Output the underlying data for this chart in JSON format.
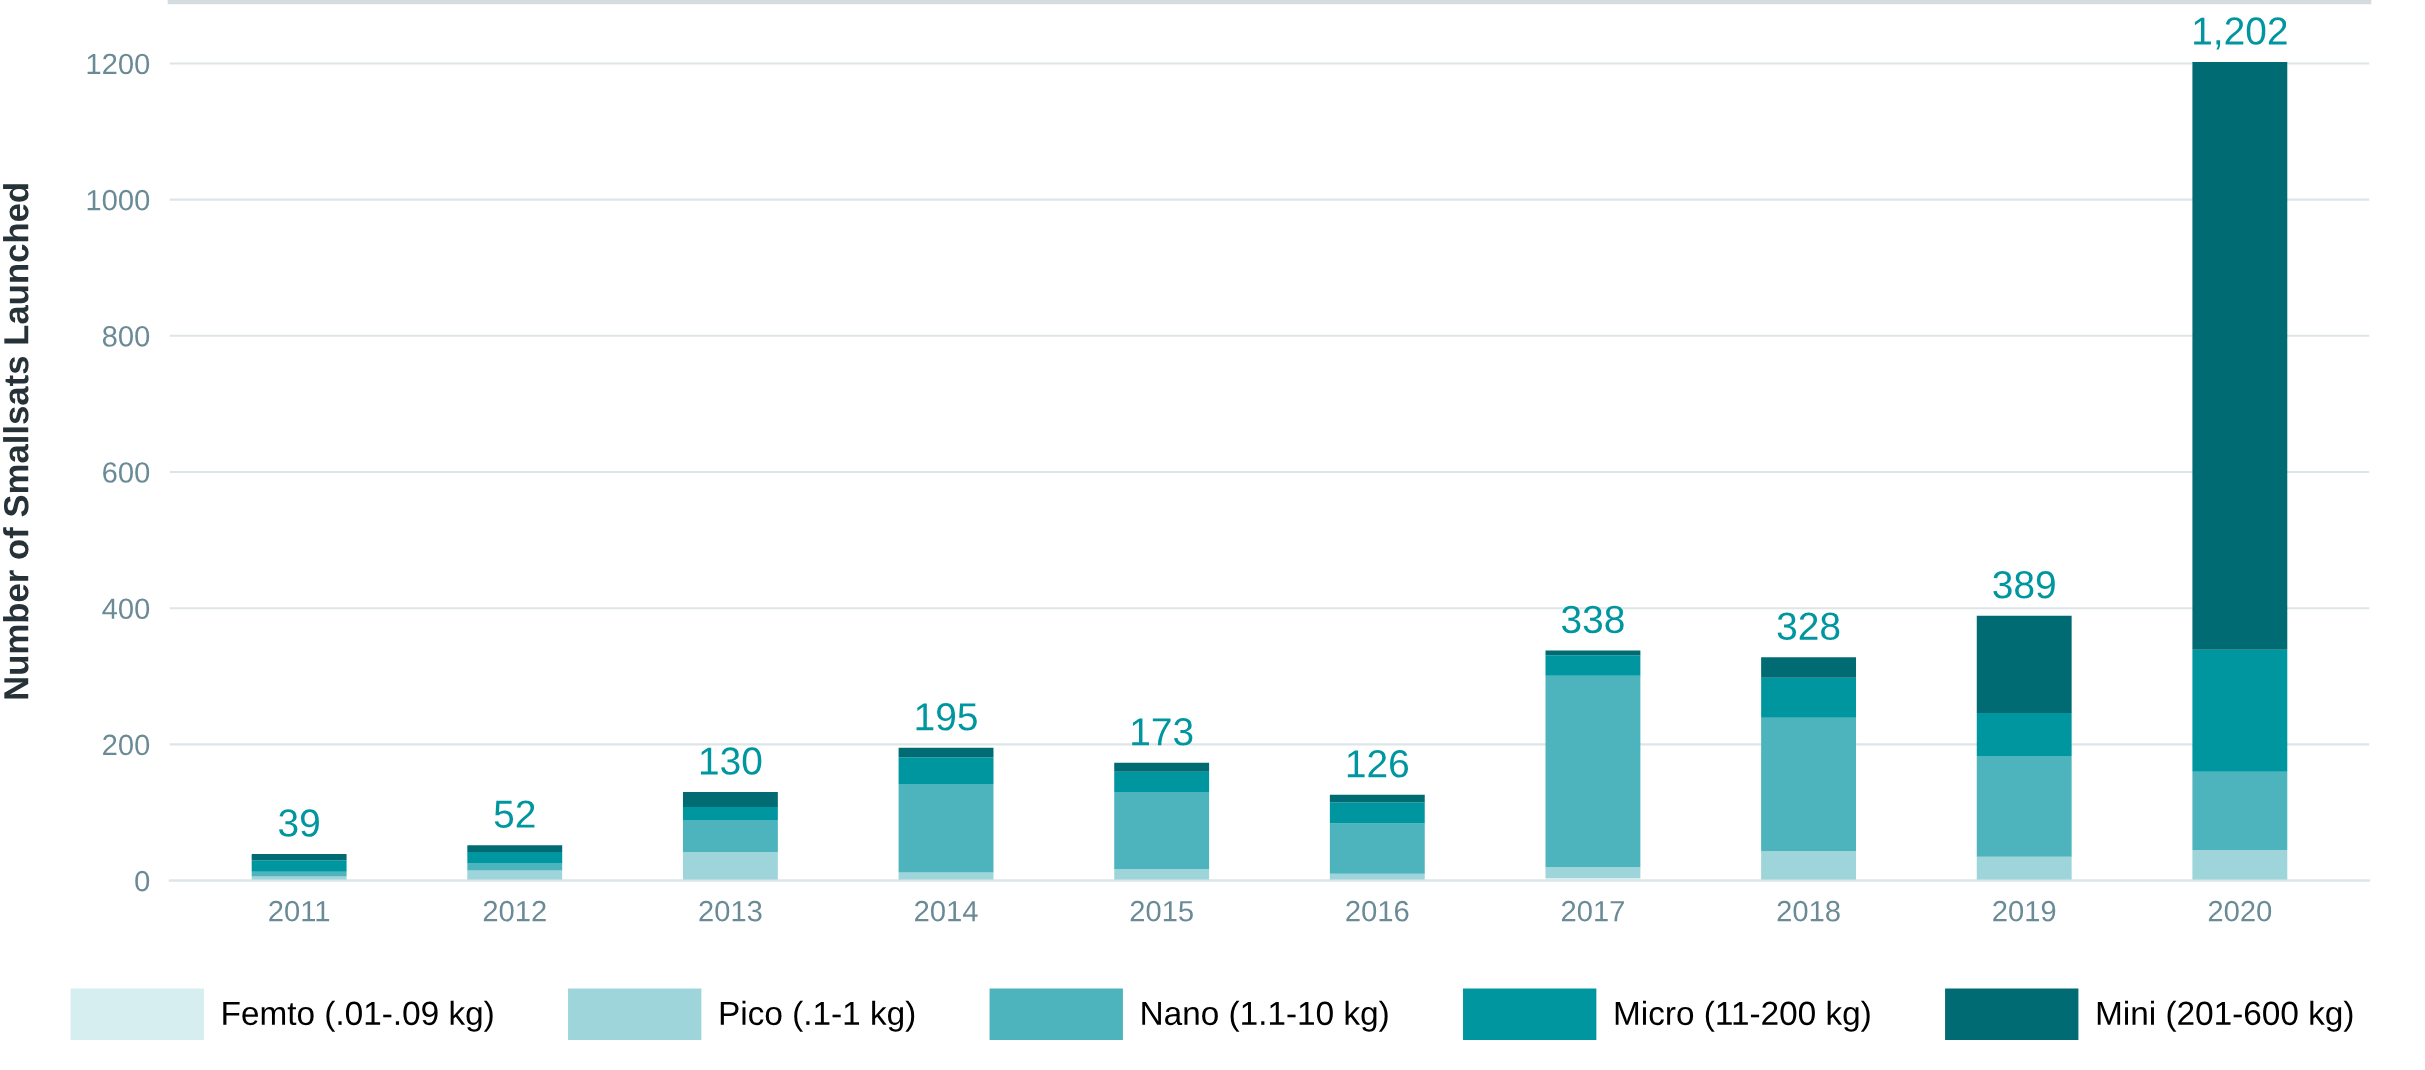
{
  "chart_data": {
    "type": "bar",
    "stacked": true,
    "ylabel": "Number of Smallsats Launched",
    "categories": [
      "2011",
      "2012",
      "2013",
      "2014",
      "2015",
      "2016",
      "2017",
      "2018",
      "2019",
      "2020"
    ],
    "series": [
      {
        "name": "Femto (.01-.09 kg)",
        "color": "#d6eef0",
        "values": [
          null,
          0,
          0,
          0,
          0,
          0,
          4,
          0,
          0,
          0
        ]
      },
      {
        "name": "Pico (.1-1 kg)",
        "color": "#9dd5da",
        "values": [
          6,
          15,
          42,
          12,
          17,
          10,
          16,
          43,
          35,
          45
        ]
      },
      {
        "name": "Nano (1.1-10 kg)",
        "color": "#4db3bd",
        "values": [
          7,
          11,
          47,
          130,
          113,
          74,
          281,
          196,
          148,
          115
        ]
      },
      {
        "name": "Micro (11-200 kg)",
        "color": "#0096a0",
        "values": [
          17,
          16,
          19,
          39,
          30,
          31,
          30,
          59,
          63,
          179
        ]
      },
      {
        "name": "Mini (201-600 kg)",
        "color": "#006b73",
        "values": [
          9,
          10,
          22,
          14,
          13,
          11,
          7,
          30,
          143,
          863
        ]
      }
    ],
    "totals": [
      "39",
      "52",
      "130",
      "195",
      "173",
      "126",
      "338",
      "328",
      "389",
      "1,202"
    ],
    "ylim": [
      0,
      1290
    ],
    "yticks": [
      0,
      200,
      400,
      600,
      800,
      1000,
      1200
    ],
    "grid": "y",
    "legend": "bottom"
  }
}
